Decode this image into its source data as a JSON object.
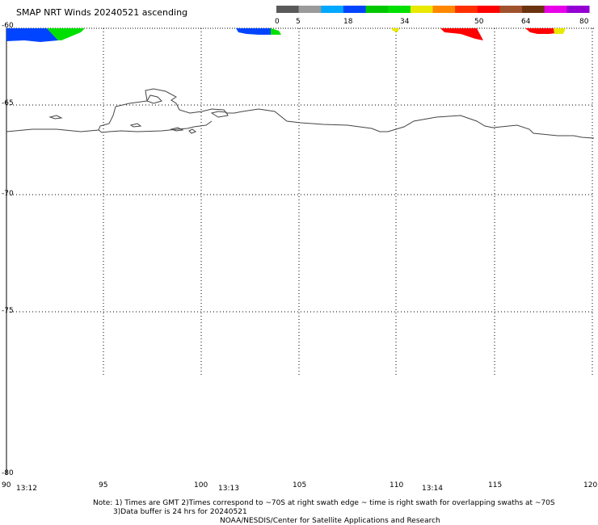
{
  "title": "SMAP NRT Winds 20240521 ascending",
  "colorbar": {
    "colors": [
      "#5a5a5a",
      "#9a9a9a",
      "#00a8ff",
      "#0044ff",
      "#00c800",
      "#00e000",
      "#e8e800",
      "#ff8800",
      "#ff3000",
      "#ff0000",
      "#a0522d",
      "#6a3410",
      "#e800e8",
      "#9400d3"
    ],
    "labels": [
      "0",
      "5",
      "18",
      "34",
      "50",
      "64",
      "80"
    ]
  },
  "lat_labels": [
    "-60",
    "-65",
    "-70",
    "-75",
    "-80"
  ],
  "lon_labels": [
    "90",
    "95",
    "100",
    "105",
    "110",
    "115",
    "120"
  ],
  "time_labels": [
    "13:12",
    "13:13",
    "13:14"
  ],
  "notes": {
    "line1": "Note: 1) Times are GMT 2)Times correspond to ~70S at right swath edge ~ time is right swath for overlapping swaths at ~70S",
    "line2": "3)Data buffer is 24 hrs for 20240521",
    "line3": "NOAA/NESDIS/Center for Satellite Applications and Research"
  }
}
